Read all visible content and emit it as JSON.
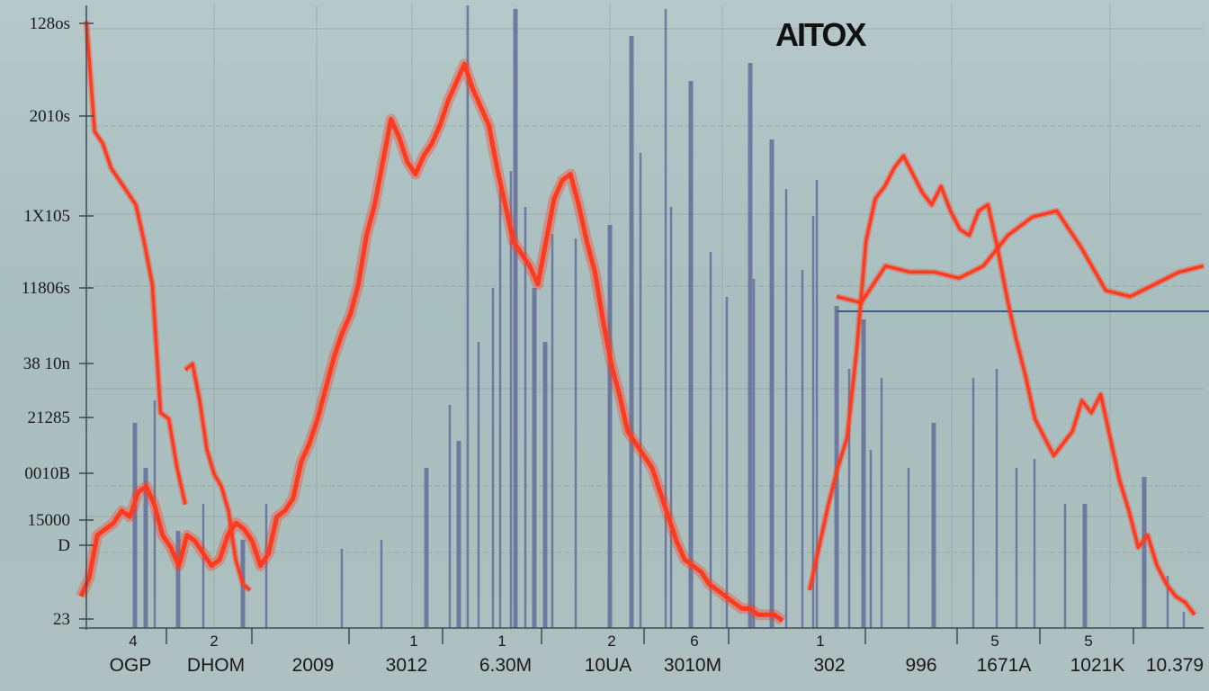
{
  "brand": "AITOX",
  "chart_data": {
    "type": "line",
    "title": "AITOX",
    "y_tick_labels": [
      "128os",
      "2010s",
      "1X105",
      "11806s",
      "38 10n",
      "21285",
      "0010B",
      "15000",
      "D",
      "23"
    ],
    "x_tick_labels": [
      "OGP",
      "DHOM",
      "2009",
      "3012",
      "6.30M",
      "10UA",
      "3010M",
      "302",
      "996",
      "1671A",
      "1021K",
      "10.379"
    ],
    "x_tick_numbers": [
      "4",
      "2",
      "1",
      "1",
      "2",
      "6",
      "1",
      "5",
      "5"
    ],
    "grid": true,
    "legend": "none",
    "colors": {
      "line": "#ff3a1e",
      "spikes": "#5a6396",
      "grid": "#8e9e9e",
      "axis": "#3e4a56"
    },
    "series": [
      {
        "values": [
          4,
          7,
          14,
          15,
          16,
          18,
          17,
          21,
          22,
          19,
          14,
          12,
          9,
          14,
          13,
          11,
          9,
          10,
          14,
          16,
          15,
          13,
          9,
          11,
          17,
          18,
          20,
          26,
          29,
          33,
          38,
          43,
          47,
          50,
          55,
          63,
          68,
          75,
          82,
          79,
          75,
          73,
          76,
          78,
          81,
          85,
          88,
          91,
          87,
          84,
          81,
          74,
          68,
          62,
          60,
          58,
          55,
          62,
          69,
          72,
          73,
          68,
          62,
          57,
          49,
          42,
          37,
          31,
          29,
          27,
          25,
          21,
          17,
          13,
          10,
          9,
          8,
          6,
          5,
          4,
          3,
          2,
          2,
          1,
          1,
          1,
          0
        ]
      },
      {
        "values": [
          98,
          80,
          78,
          74,
          72,
          70,
          68,
          62,
          55,
          34,
          33,
          25,
          19
        ]
      },
      {
        "values": [
          53,
          52,
          58,
          57,
          57,
          56,
          58,
          63,
          66,
          67,
          61,
          54,
          53,
          55,
          57,
          58
        ]
      },
      {
        "values": [
          41,
          42,
          36,
          28,
          24,
          22,
          18,
          10,
          6,
          5
        ]
      },
      {
        "values": [
          5,
          12,
          19,
          25,
          30,
          44,
          62,
          69,
          71,
          74,
          76,
          73,
          70,
          68,
          71,
          67,
          64,
          63,
          67,
          68,
          61,
          53,
          46,
          40,
          33,
          30,
          27,
          29,
          31,
          36,
          34,
          37,
          30,
          23,
          18,
          12,
          14,
          9,
          6,
          4,
          3,
          1
        ]
      }
    ]
  }
}
